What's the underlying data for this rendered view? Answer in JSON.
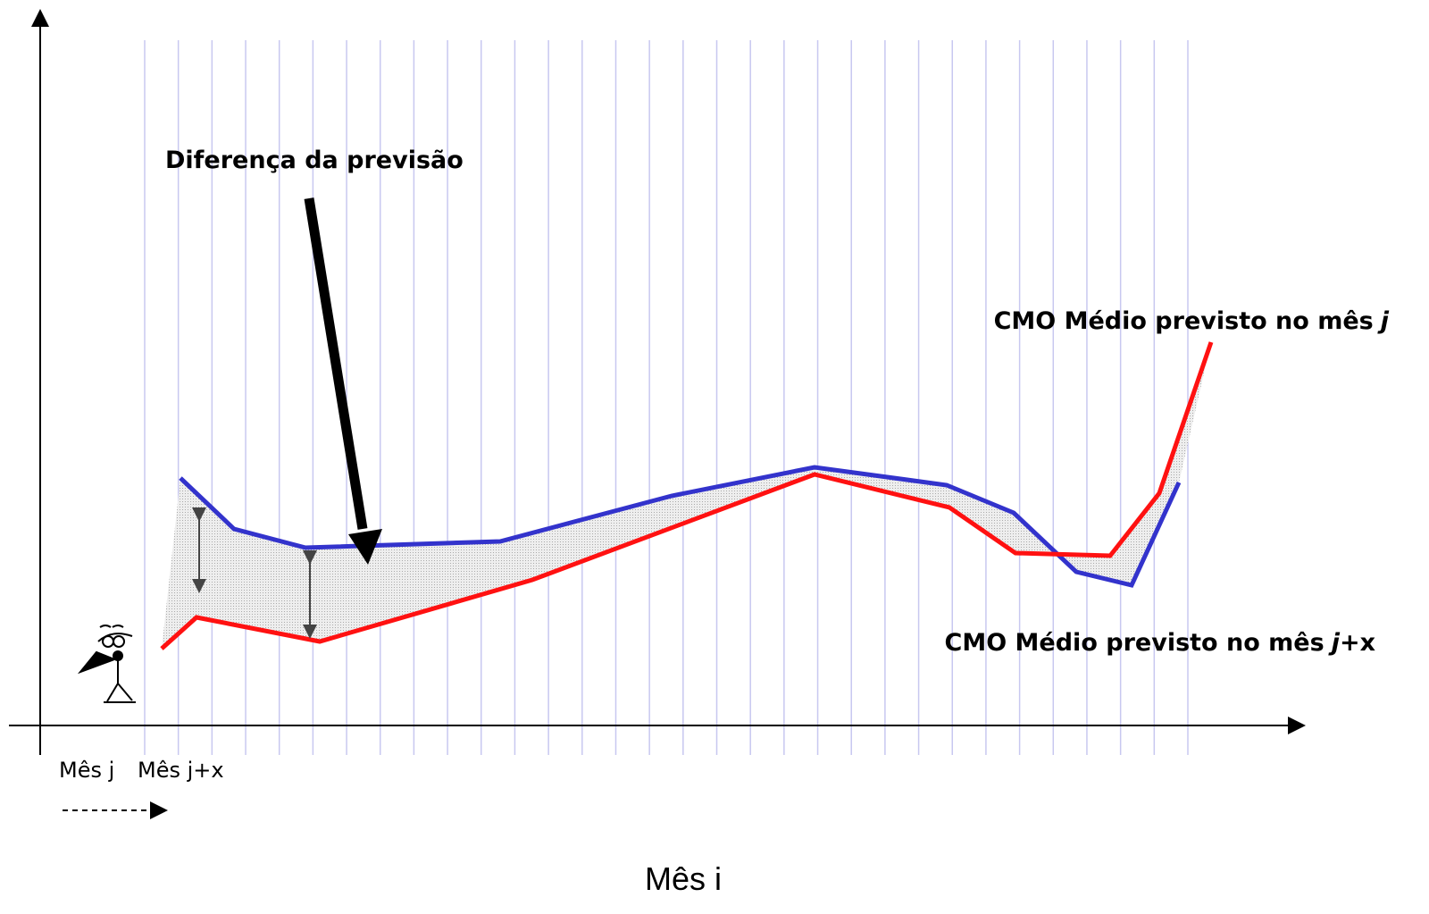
{
  "arrow_label": "Diferença da previsão",
  "series_labels": [
    {
      "text": "CMO Médio previsto no mês",
      "emphasis": "j"
    },
    {
      "text": "CMO Médio previsto no mês",
      "emphasis": "j+",
      "suffix": "x"
    }
  ],
  "x_labels": [
    "Mês j",
    "Mês j+x"
  ],
  "x_axis_title": "Mês i"
}
